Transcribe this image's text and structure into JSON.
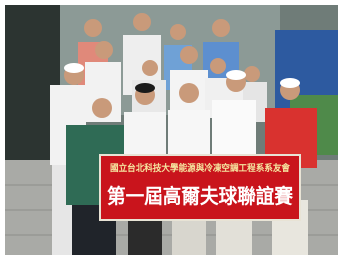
{
  "banner": {
    "subtitle": "國立台北科技大學能源與冷凍空調工程系系友會",
    "title": "第一屆高爾夫球聯誼賽"
  }
}
